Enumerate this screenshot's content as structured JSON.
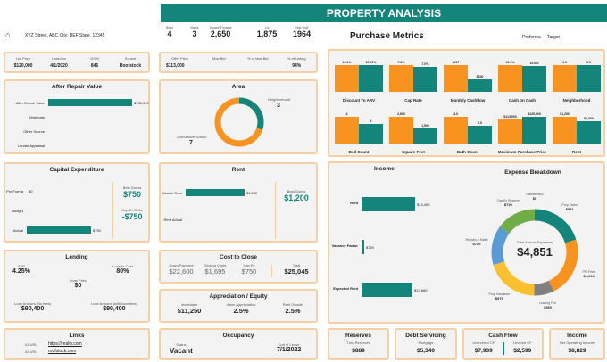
{
  "title": "PROPERTY ANALYSIS",
  "colors": {
    "accent": "#13857a",
    "proforma": "#f7931e",
    "target": "#13857a",
    "border": "#f6cfa3"
  },
  "header": {
    "icon": "house-icon",
    "address": "XYZ Street, ABC City, DEF State, 12345",
    "stats": [
      {
        "label": "Beds",
        "value": "4"
      },
      {
        "label": "Baths",
        "value": "3"
      },
      {
        "label": "Square Footage",
        "value": "2,650"
      },
      {
        "label": "Lot",
        "value": "1,875"
      },
      {
        "label": "Year Built",
        "value": "1964"
      }
    ]
  },
  "listing": [
    {
      "label": "List Price",
      "value": "$120,000"
    },
    {
      "label": "Listed on",
      "value": "4/1/2020"
    },
    {
      "label": "DOM",
      "value": "846"
    },
    {
      "label": "Source",
      "value": "Roofstock"
    }
  ],
  "offer": [
    {
      "label": "Offer Price",
      "value": "$113,000"
    },
    {
      "label": "Max Bid",
      "value": ""
    },
    {
      "label": "% of Max Bid",
      "value": ""
    },
    {
      "label": "% of Listing",
      "value": "94%"
    }
  ],
  "arv": {
    "title": "After Repair Value",
    "rows": [
      {
        "label": "After Repair Value",
        "value": "$135,000",
        "pct": 1
      },
      {
        "label": "Zestimate",
        "value": "",
        "pct": 0
      },
      {
        "label": "Other Source",
        "value": "",
        "pct": 0
      },
      {
        "label": "Lender Appraisal",
        "value": "",
        "pct": 0
      }
    ]
  },
  "area": {
    "title": "Area",
    "neighborhood_label": "Neighborhood",
    "neighborhood": "3",
    "school_label": "Cumulative School",
    "school": "7"
  },
  "capex": {
    "title": "Capital Expenditure",
    "rows": [
      {
        "label": "Pro Forma",
        "value": "$0",
        "pct": 0
      },
      {
        "label": "Budget",
        "value": "",
        "pct": 0
      },
      {
        "label": "Actual",
        "value": "$750",
        "pct": 1
      }
    ],
    "best_guess_label": "Best Guess",
    "best_guess": "$750",
    "delta_label": "Cap Ex Delta",
    "delta": "-$750"
  },
  "rent": {
    "title": "Rent",
    "rows": [
      {
        "label": "Market Rent",
        "value": "$1,200",
        "pct": 1
      },
      {
        "label": "Rent Actual",
        "value": "",
        "pct": 0
      }
    ],
    "best_guess_label": "Best Guess",
    "best_guess": "$1,200"
  },
  "lending": {
    "title": "Lending",
    "apr_label": "APR",
    "apr": "4.25%",
    "ltc_label": "Loan to Cost",
    "ltc": "80%",
    "fees_label": "Loan Fees",
    "fees": "$0",
    "amt_label": "Loan Amount (No fees)",
    "amt": "$90,400",
    "amt2_label": "Loan Amount (with loan fees)",
    "amt2": "$90,400"
  },
  "close": {
    "title": "Cost to Close",
    "items": [
      {
        "label": "Down Payment",
        "value": "$22,600"
      },
      {
        "label": "Closing Costs",
        "value": "$1,695"
      },
      {
        "label": "Cap Ex",
        "value": "$750"
      }
    ],
    "total_label": "Total",
    "total": "$25,045"
  },
  "appr": {
    "title": "Appreciation / Equity",
    "items": [
      {
        "label": "Immediate",
        "value": "$11,250"
      },
      {
        "label": "Value Appreciation",
        "value": "2.5%"
      },
      {
        "label": "Rent Growth",
        "value": "2.5%"
      }
    ]
  },
  "links": {
    "title": "Links",
    "items": [
      {
        "label": "#1 URL",
        "value": "https://realty.com"
      },
      {
        "label": "#2 URL",
        "value": "roofstock.com"
      }
    ]
  },
  "occ": {
    "title": "Occupancy",
    "status_label": "Status",
    "status": "Vacant",
    "end_label": "End of Lease",
    "end": "7/1/2022"
  },
  "purchase": {
    "title": "Purchase Metrics",
    "legend": [
      "Proforma",
      "Target"
    ],
    "charts": [
      {
        "name": "Discount To ARV",
        "values": [
          15.0,
          15.0
        ],
        "labels": [
          "15.0%",
          "15.00%"
        ]
      },
      {
        "name": "Cap Rate",
        "values": [
          7.6,
          7.0
        ],
        "labels": [
          "7.6%",
          "7.0%"
        ]
      },
      {
        "name": "Monthly Cashflow",
        "values": [
          217,
          100
        ],
        "labels": [
          "$217",
          "$100"
        ]
      },
      {
        "name": "Cash on Cash",
        "values": [
          10.4,
          10.0
        ],
        "labels": [
          "10.4%",
          "10.0%"
        ]
      },
      {
        "name": "Neighborhood",
        "values": [
          5,
          5
        ],
        "labels": [
          "5.0",
          "5.0"
        ]
      },
      {
        "name": "Bed Count",
        "values": [
          4,
          3
        ],
        "labels": [
          "4",
          "3"
        ]
      },
      {
        "name": "Square Feet",
        "values": [
          2650,
          1500
        ],
        "labels": [
          "2,650",
          "1,500"
        ]
      },
      {
        "name": "Bath Count",
        "values": [
          3,
          2
        ],
        "labels": [
          "3.0",
          "2.0"
        ]
      },
      {
        "name": "Maximum Purchase Price",
        "values": [
          113000,
          125000
        ],
        "labels": [
          "$113,000",
          "$125,000"
        ]
      },
      {
        "name": "Rent",
        "values": [
          1200,
          1000
        ],
        "labels": [
          "$1,200",
          "$1,000"
        ]
      }
    ]
  },
  "income": {
    "title": "Income",
    "rows": [
      {
        "label": "Rent",
        "value": "$14,400",
        "amount": 14400
      },
      {
        "label": "Vacancy Factor",
        "value": "$720",
        "amount": 720
      },
      {
        "label": "Expected Rent",
        "value": "$13,680",
        "amount": 13680
      }
    ]
  },
  "expense": {
    "title": "Expense Breakdown",
    "center_label": "Total Annual Expenses",
    "total": "$4,851",
    "slices": [
      {
        "label": "Prop Taxes",
        "value": "$981",
        "amount": 981,
        "color": "#13857a"
      },
      {
        "label": "PM Fees",
        "value": "$1,094",
        "amount": 1094,
        "color": "#f7931e"
      },
      {
        "label": "Leasing Fee",
        "value": "$360",
        "amount": 360,
        "color": "#808080"
      },
      {
        "label": "Prop Insurance",
        "value": "$976",
        "amount": 976,
        "color": "#fbc02d"
      },
      {
        "label": "Repairs & Maint",
        "value": "$720",
        "amount": 720,
        "color": "#5b9bd5"
      },
      {
        "label": "Cap Ex Reserve",
        "value": "$720",
        "amount": 720,
        "color": "#70ad47"
      },
      {
        "label": "Utilities/Misc",
        "value": "$0",
        "amount": 0,
        "color": "#a5a5a5"
      }
    ]
  },
  "bottom": [
    {
      "title": "Reserves",
      "items": [
        {
          "label": "Turn Reserves",
          "value": "$889"
        }
      ]
    },
    {
      "title": "Debt Servicing",
      "items": [
        {
          "label": "Mortgage",
          "value": "$5,340"
        }
      ]
    },
    {
      "title": "Cash Flow",
      "items": [
        {
          "label": "Unlevered CF",
          "value": "$7,939"
        },
        {
          "label": "Levered CF",
          "value": "$2,599"
        }
      ]
    },
    {
      "title": "Income",
      "items": [
        {
          "label": "Net Operating Income",
          "value": "$8,829"
        }
      ]
    }
  ]
}
